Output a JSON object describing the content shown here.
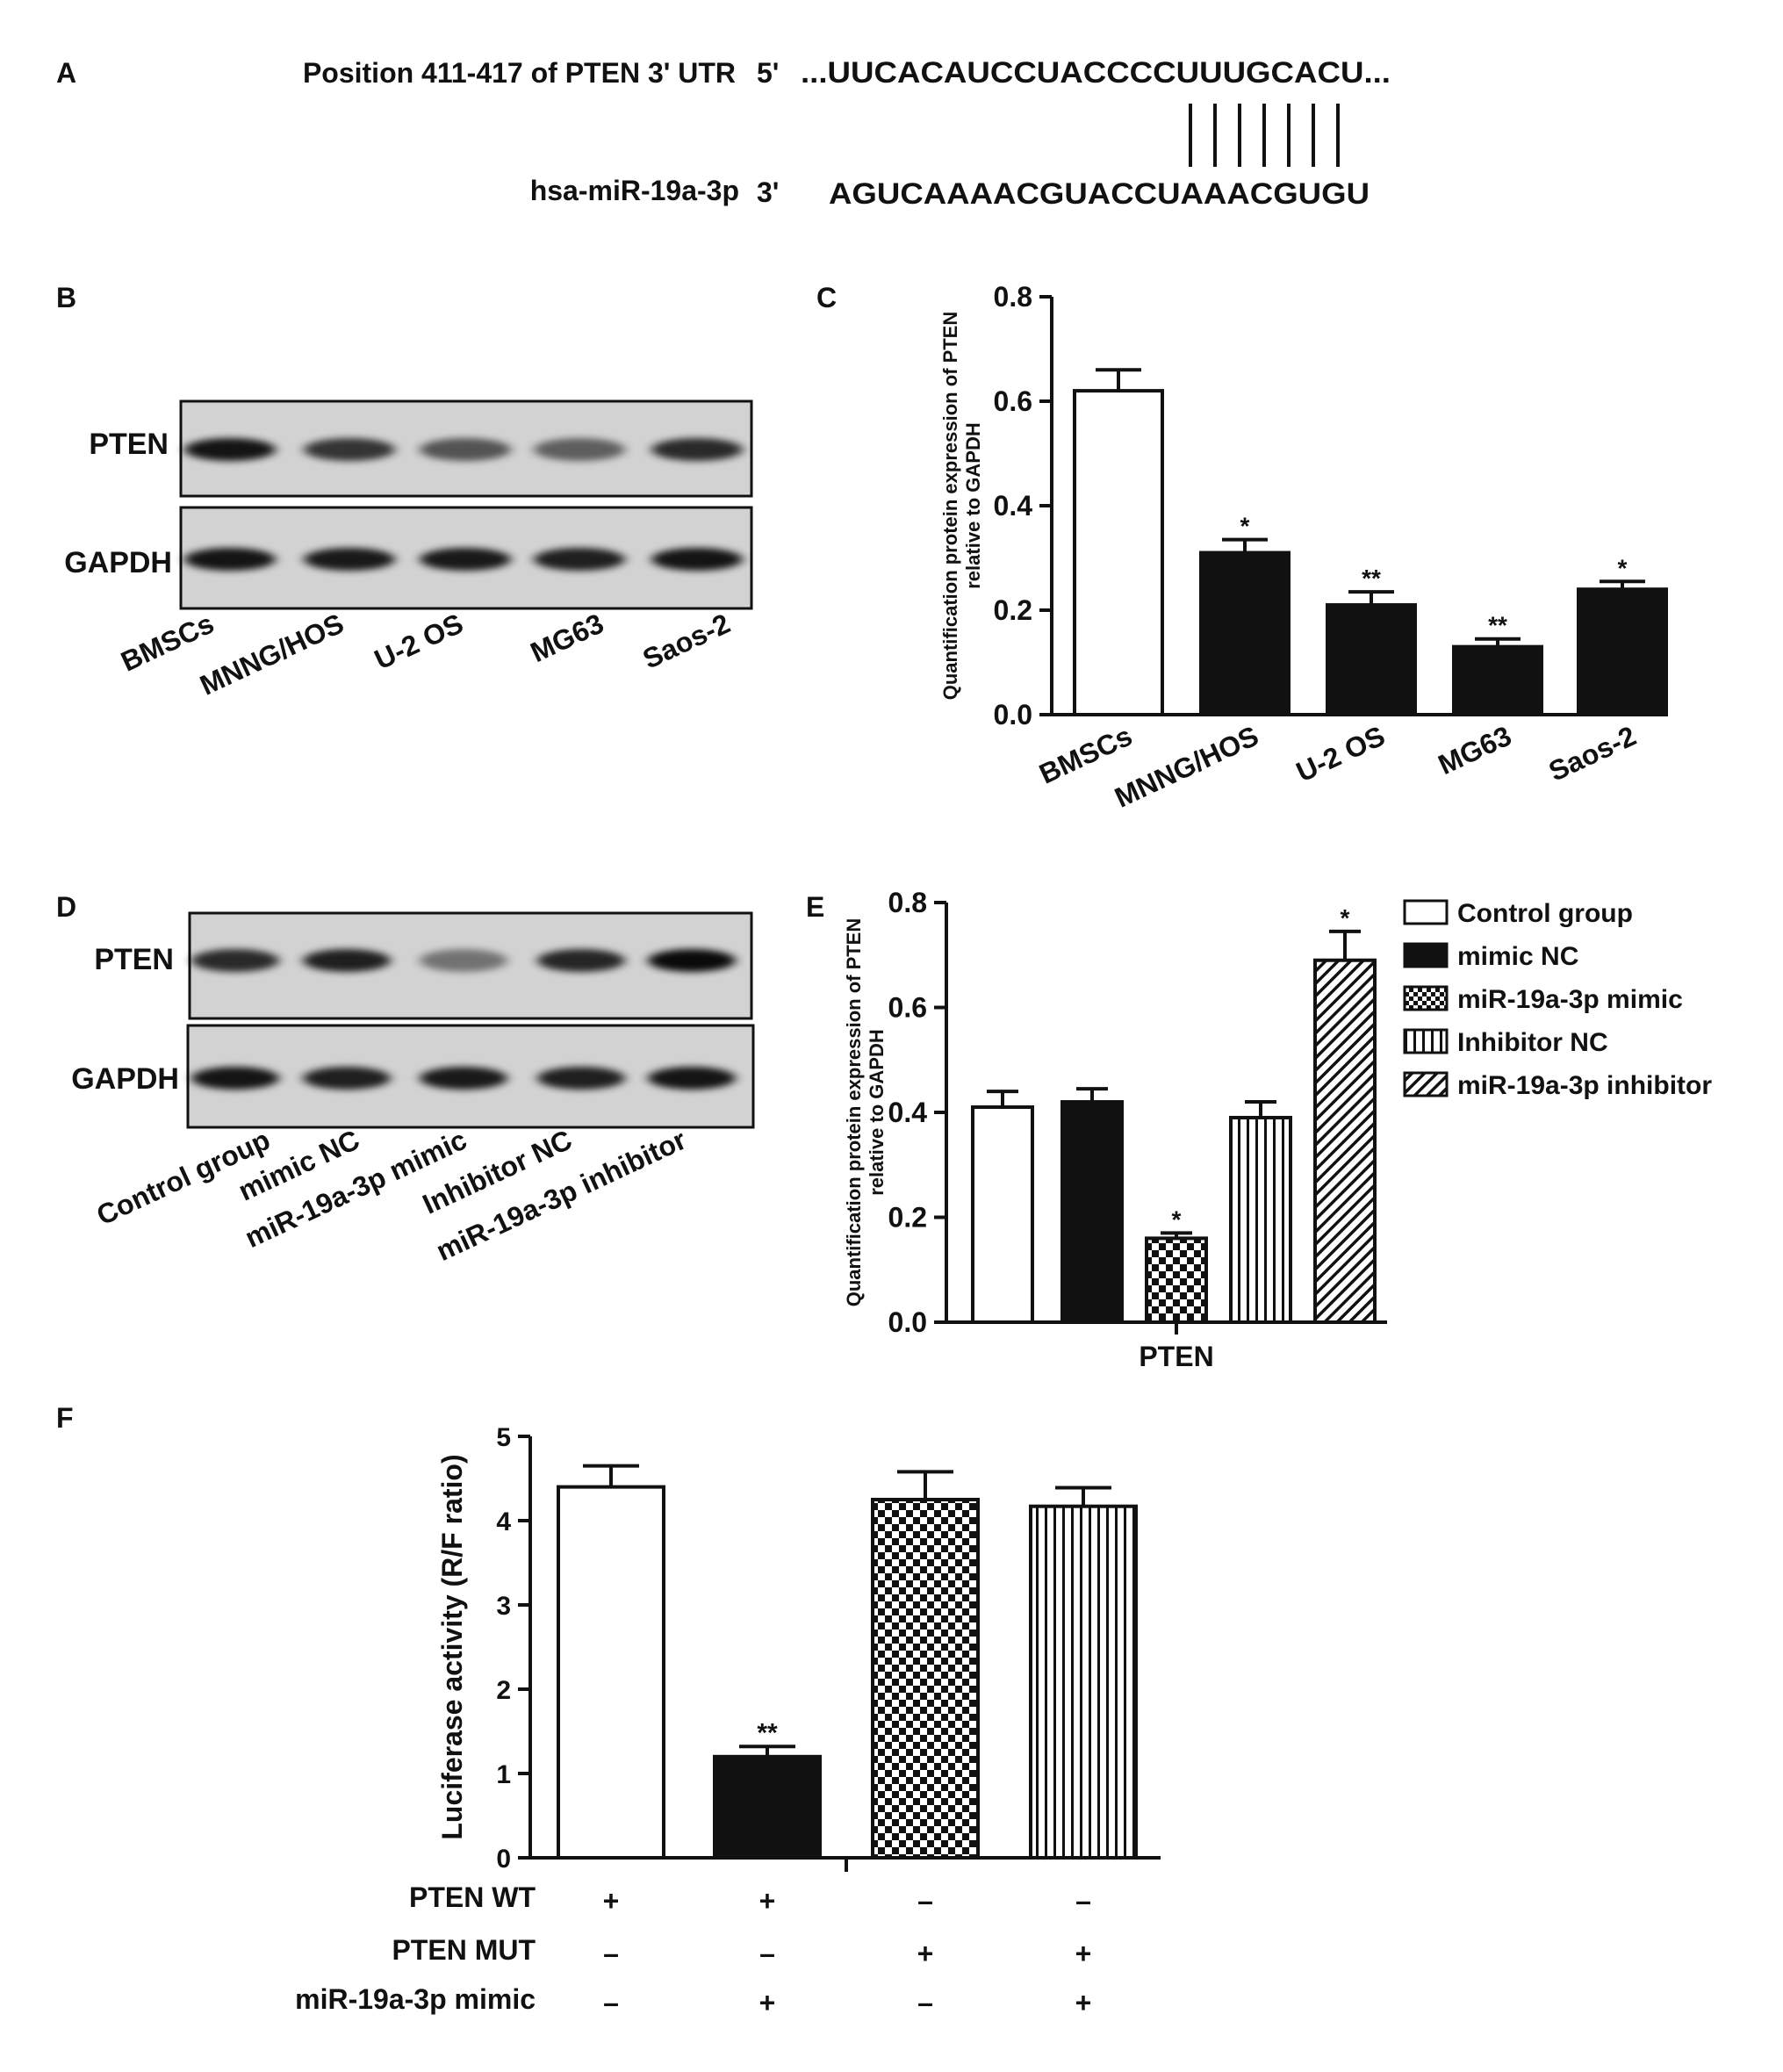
{
  "panels": {
    "A": {
      "letter": "A",
      "utr_label": "Position 411-417 of PTEN 3' UTR",
      "utr_end": "5'",
      "utr_seq": "...UUCACAUCCUACCCCUUUGCACU...",
      "mir_label": "hsa-miR-19a-3p",
      "mir_end": "3'",
      "mir_seq": "AGUCAAAACGUACCUAAACGUGU",
      "pair_count": 7
    },
    "B": {
      "letter": "B",
      "row_labels": [
        "PTEN",
        "GAPDH"
      ],
      "lane_labels": [
        "BMSCs",
        "MNNG/HOS",
        "U-2 OS",
        "MG63",
        "Saos-2"
      ],
      "pten_band_intensity": [
        0.9,
        0.75,
        0.6,
        0.55,
        0.8
      ],
      "gapdh_band_intensity": [
        0.9,
        0.88,
        0.88,
        0.85,
        0.9
      ]
    },
    "D": {
      "letter": "D",
      "row_labels": [
        "PTEN",
        "GAPDH"
      ],
      "lane_labels": [
        "Control group",
        "mimic NC",
        "miR-19a-3p mimic",
        "Inhibitor NC",
        "miR-19a-3p inhibitor"
      ],
      "pten_band_intensity": [
        0.8,
        0.85,
        0.45,
        0.82,
        0.95
      ],
      "gapdh_band_intensity": [
        0.9,
        0.85,
        0.88,
        0.85,
        0.9
      ]
    }
  },
  "chart_data": [
    {
      "panel": "C",
      "type": "bar",
      "ylabel": "Quantification protein expression of PTEN relative to GAPDH",
      "ylabel_lines": [
        "Quantification protein expression of PTEN",
        "relative to GAPDH"
      ],
      "categories": [
        "BMSCs",
        "MNNG/HOS",
        "U-2 OS",
        "MG63",
        "Saos-2"
      ],
      "values": [
        0.62,
        0.31,
        0.21,
        0.13,
        0.24
      ],
      "errors": [
        0.04,
        0.025,
        0.025,
        0.015,
        0.015
      ],
      "significance": [
        "",
        "*",
        "**",
        "**",
        "*"
      ],
      "fills": [
        "white",
        "black",
        "black",
        "black",
        "black"
      ],
      "ylim": [
        0,
        0.8
      ],
      "yticks": [
        "0.0",
        "0.2",
        "0.4",
        "0.6",
        "0.8"
      ]
    },
    {
      "panel": "E",
      "type": "bar",
      "ylabel": "Quantification protein expression of PTEN relative to GAPDH",
      "ylabel_lines": [
        "Quantification protein expression of PTEN",
        "relative to GAPDH"
      ],
      "xlabel": "PTEN",
      "series": [
        {
          "name": "Control group",
          "values": [
            0.41
          ],
          "errors": [
            0.03
          ],
          "significance": "",
          "pattern": "white"
        },
        {
          "name": "mimic NC",
          "values": [
            0.42
          ],
          "errors": [
            0.025
          ],
          "significance": "",
          "pattern": "black"
        },
        {
          "name": "miR-19a-3p mimic",
          "values": [
            0.16
          ],
          "errors": [
            0.01
          ],
          "significance": "*",
          "pattern": "checker"
        },
        {
          "name": "Inhibitor NC",
          "values": [
            0.39
          ],
          "errors": [
            0.03
          ],
          "significance": "",
          "pattern": "vstripe"
        },
        {
          "name": "miR-19a-3p inhibitor",
          "values": [
            0.69
          ],
          "errors": [
            0.055
          ],
          "significance": "*",
          "pattern": "diag"
        }
      ],
      "ylim": [
        0,
        0.8
      ],
      "yticks": [
        "0.0",
        "0.2",
        "0.4",
        "0.6",
        "0.8"
      ],
      "legend_position": "right"
    },
    {
      "panel": "F",
      "type": "bar",
      "ylabel": "Luciferase activity (R/F ratio)",
      "values": [
        4.4,
        1.2,
        4.25,
        4.17
      ],
      "errors": [
        0.25,
        0.12,
        0.33,
        0.22
      ],
      "significance": [
        "",
        "**",
        "",
        ""
      ],
      "patterns": [
        "white",
        "black",
        "checker",
        "vstripe"
      ],
      "ylim": [
        0,
        5
      ],
      "yticks": [
        "0",
        "1",
        "2",
        "3",
        "4",
        "5"
      ],
      "condition_rows": [
        {
          "label": "PTEN WT",
          "marks": [
            "+",
            "+",
            "–",
            "–"
          ]
        },
        {
          "label": "PTEN MUT",
          "marks": [
            "–",
            "–",
            "+",
            "+"
          ]
        },
        {
          "label": "miR-19a-3p mimic",
          "marks": [
            "–",
            "+",
            "–",
            "+"
          ]
        }
      ]
    }
  ],
  "panel_letters": {
    "C": "C",
    "E": "E",
    "F": "F"
  }
}
